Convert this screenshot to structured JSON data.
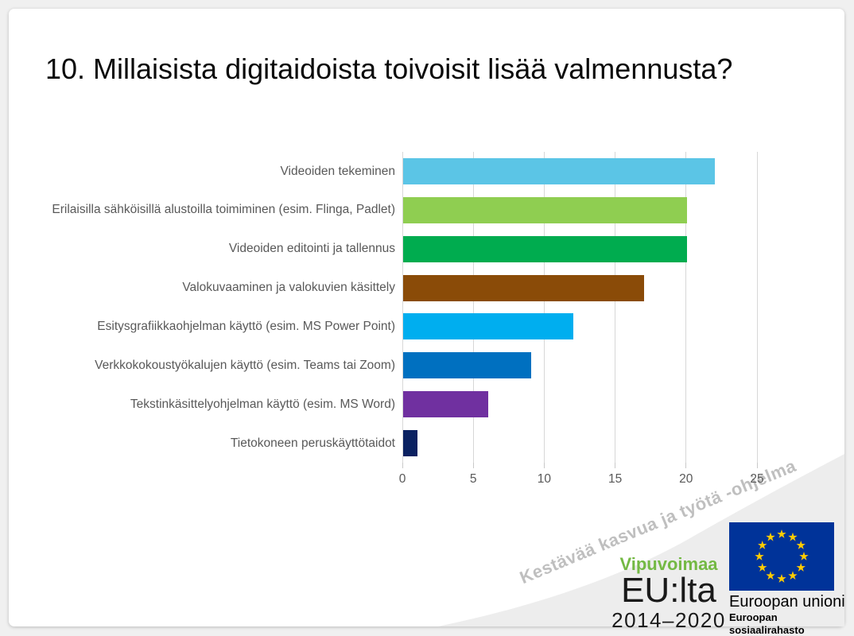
{
  "slide": {
    "title": "10. Millaisista digitaidoista toivoisit lisää valmennusta?"
  },
  "chart_data": {
    "type": "bar",
    "orientation": "horizontal",
    "title": "10. Millaisista digitaidoista toivoisit lisää valmennusta?",
    "categories": [
      "Videoiden tekeminen",
      "Erilaisilla sähköisillä alustoilla toimiminen (esim. Flinga, Padlet)",
      "Videoiden editointi ja tallennus",
      "Valokuvaaminen ja valokuvien käsittely",
      "Esitysgrafiikkaohjelman käyttö (esim. MS Power Point)",
      "Verkkokokoustyökalujen käyttö (esim. Teams tai Zoom)",
      "Tekstinkäsittelyohjelman käyttö (esim. MS Word)",
      "Tietokoneen peruskäyttötaidot"
    ],
    "values": [
      22,
      20,
      20,
      17,
      12,
      9,
      6,
      1
    ],
    "bar_colors": [
      "#5BC5E6",
      "#8FCE51",
      "#00AC4F",
      "#8A4B08",
      "#00AEEF",
      "#0070C0",
      "#7030A0",
      "#0A2161"
    ],
    "xlabel": "",
    "ylabel": "",
    "xticks": [
      0,
      5,
      10,
      15,
      20,
      25
    ],
    "xlim": [
      0,
      25
    ],
    "grid": true,
    "legend": false,
    "gridline_color": "#D7D7D7",
    "label_color": "#595959"
  },
  "footer": {
    "program_text": "Kestävää kasvua ja työtä -ohjelma",
    "wave_color": "#EDEDED",
    "vipuvoimaa_logo": {
      "line1": "Vipuvoimaa",
      "line2": "EU:lta",
      "line3": "2014–2020",
      "green": "#74B944"
    },
    "eu_logo": {
      "line1": "Euroopan unioni",
      "line2": "Euroopan sosiaalirahasto",
      "flag_blue": "#003399",
      "star_yellow": "#FFCC00"
    }
  }
}
